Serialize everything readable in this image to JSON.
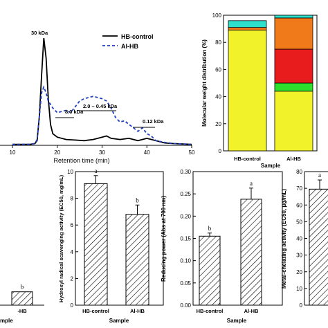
{
  "chart_data": [
    {
      "type": "line",
      "xlabel": "Retention time (min)",
      "xlim": [
        10,
        50
      ],
      "x_ticks": [
        "10",
        "20",
        "30",
        "40",
        "50"
      ],
      "series": [
        {
          "name": "HB-control",
          "color": "#000000",
          "dash": "solid",
          "points": [
            [
              10,
              0.8
            ],
            [
              14,
              0.9
            ],
            [
              15,
              1.5
            ],
            [
              15.5,
              4
            ],
            [
              16,
              25
            ],
            [
              16.5,
              60
            ],
            [
              17,
              92
            ],
            [
              17.5,
              75
            ],
            [
              18,
              40
            ],
            [
              18.5,
              18
            ],
            [
              19,
              10
            ],
            [
              20,
              7
            ],
            [
              22,
              5
            ],
            [
              24,
              4.5
            ],
            [
              26,
              4
            ],
            [
              28,
              5
            ],
            [
              30,
              7
            ],
            [
              31,
              8
            ],
            [
              32,
              6
            ],
            [
              34,
              5
            ],
            [
              36,
              6
            ],
            [
              38,
              4
            ],
            [
              40,
              6
            ],
            [
              42,
              4
            ],
            [
              44,
              2
            ],
            [
              46,
              1.5
            ],
            [
              50,
              0.8
            ]
          ]
        },
        {
          "name": "Al-HB",
          "color": "#1f3fbf",
          "dash": "dashed",
          "points": [
            [
              10,
              0.8
            ],
            [
              14,
              0.9
            ],
            [
              15,
              1.5
            ],
            [
              15.5,
              5
            ],
            [
              16,
              25
            ],
            [
              16.5,
              45
            ],
            [
              17,
              50
            ],
            [
              17.5,
              45
            ],
            [
              18,
              38
            ],
            [
              19,
              32
            ],
            [
              20,
              28
            ],
            [
              21,
              29
            ],
            [
              22,
              30
            ],
            [
              23,
              28
            ],
            [
              24,
              33
            ],
            [
              25,
              38
            ],
            [
              26,
              40
            ],
            [
              27,
              41
            ],
            [
              28,
              42
            ],
            [
              29,
              41
            ],
            [
              30,
              40
            ],
            [
              31,
              38
            ],
            [
              32,
              32
            ],
            [
              33,
              24
            ],
            [
              34,
              20
            ],
            [
              35,
              21
            ],
            [
              36,
              18
            ],
            [
              37,
              15
            ],
            [
              38,
              12
            ],
            [
              39,
              15
            ],
            [
              40,
              10
            ],
            [
              41,
              8
            ],
            [
              42,
              4
            ],
            [
              44,
              2.5
            ],
            [
              46,
              1.5
            ],
            [
              50,
              0.8
            ]
          ]
        }
      ],
      "annotations": [
        "30 kDa",
        "8.0 kDa",
        "2.0 – 0.45 kDa",
        "0.12 kDa"
      ]
    },
    {
      "type": "bar",
      "stacked": true,
      "ylabel": "Molecular weight distribution (%)",
      "xlabel": "Sample",
      "categories": [
        "HB-control",
        "Al-HB"
      ],
      "ylim": [
        0,
        100
      ],
      "y_ticks": [
        "0",
        "20",
        "40",
        "60",
        "80",
        "100"
      ],
      "segments": [
        {
          "color": "#f2f22a",
          "values": [
            89,
            44
          ]
        },
        {
          "color": "#2ce02c",
          "values": [
            0,
            6
          ]
        },
        {
          "color": "#e81c1c",
          "values": [
            0,
            25
          ]
        },
        {
          "color": "#f07a1a",
          "values": [
            2,
            23
          ]
        },
        {
          "color": "#2de0cc",
          "values": [
            5,
            2
          ]
        }
      ]
    },
    {
      "type": "bar",
      "xlabel": "mple",
      "categories": [
        "-HB"
      ],
      "values": [
        1.0
      ],
      "ylim": [
        0,
        10
      ],
      "significance": [
        "b"
      ]
    },
    {
      "type": "bar",
      "ylabel": "Hydroxyl radical scavenging activity (EC50, mg/mL)",
      "xlabel": "Sample",
      "categories": [
        "HB-control",
        "Al-HB"
      ],
      "values": [
        9.1,
        6.8
      ],
      "errors": [
        0.6,
        0.7
      ],
      "ylim": [
        0,
        10
      ],
      "y_ticks": [
        "0",
        "2",
        "4",
        "6",
        "8",
        "10"
      ],
      "significance": [
        "a",
        "b"
      ]
    },
    {
      "type": "bar",
      "ylabel": "Reducing power (Abs at 700 nm)",
      "xlabel": "Sample",
      "categories": [
        "HB-control",
        "Al-HB"
      ],
      "values": [
        0.155,
        0.238
      ],
      "errors": [
        0.007,
        0.025
      ],
      "ylim": [
        0,
        0.3
      ],
      "y_ticks": [
        "0.00",
        "0.05",
        "0.10",
        "0.15",
        "0.20",
        "0.25",
        "0.30"
      ],
      "significance": [
        "b",
        "a"
      ]
    },
    {
      "type": "bar",
      "ylabel": "Metal-chelating activity (EC50, μg/mL)",
      "categories": [
        ""
      ],
      "values": [
        69.5
      ],
      "errors": [
        5.5
      ],
      "ylim": [
        0,
        80
      ],
      "y_ticks": [
        "0",
        "10",
        "20",
        "30",
        "40",
        "50",
        "60",
        "70",
        "80"
      ],
      "significance": [
        "a"
      ]
    }
  ]
}
